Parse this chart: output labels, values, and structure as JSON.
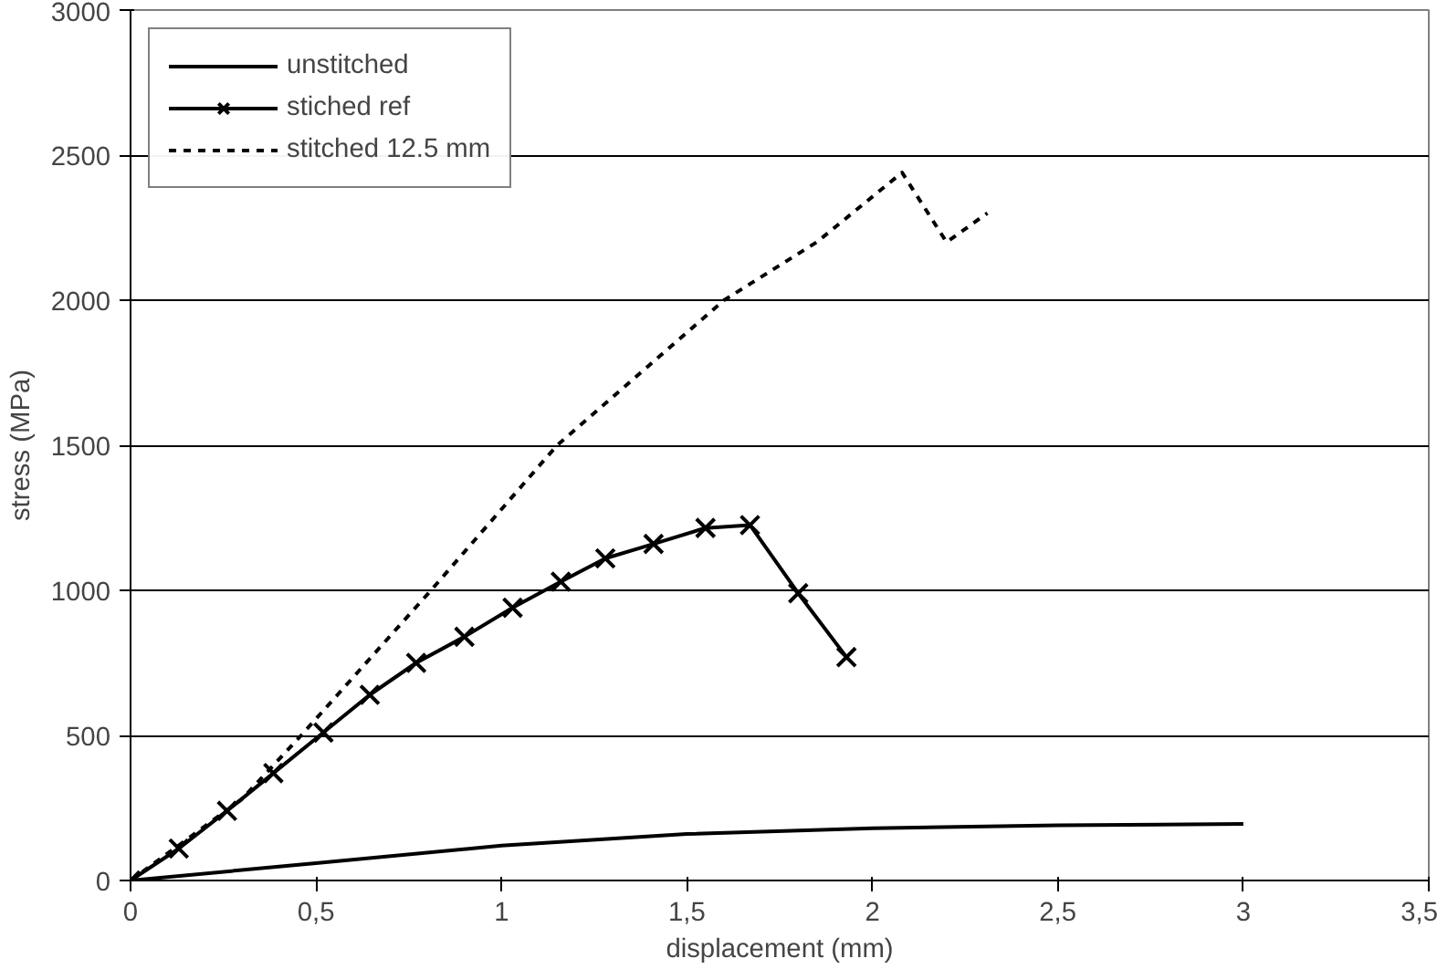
{
  "chart_data": {
    "type": "line",
    "xlabel": "displacement (mm)",
    "ylabel": "stress (MPa)",
    "xlim": [
      0,
      3.5
    ],
    "xticks": [
      {
        "value": 0,
        "label": "0"
      },
      {
        "value": 0.5,
        "label": "0,5"
      },
      {
        "value": 1,
        "label": "1"
      },
      {
        "value": 1.5,
        "label": "1,5"
      },
      {
        "value": 2,
        "label": "2"
      },
      {
        "value": 2.5,
        "label": "2,5"
      },
      {
        "value": 3,
        "label": "3"
      },
      {
        "value": 3.5,
        "label": "3,5"
      }
    ],
    "ylim": [
      0,
      3000
    ],
    "yticks": [
      0,
      500,
      1000,
      1500,
      2000,
      2500,
      3000
    ],
    "grid": "y",
    "legend": "top left",
    "series": [
      {
        "name": "unstitched",
        "color": "#000000",
        "marker": "none",
        "line_style": "solid",
        "x": [
          0,
          0.5,
          1,
          1.5,
          2,
          2.5,
          3
        ],
        "values": [
          0,
          60,
          120,
          160,
          180,
          190,
          195
        ]
      },
      {
        "name": "stiched ref",
        "color": "#000000",
        "marker": "cross",
        "line_style": "solid",
        "x": [
          0,
          0.13,
          0.26,
          0.385,
          0.52,
          0.645,
          0.77,
          0.9,
          1.03,
          1.16,
          1.28,
          1.41,
          1.55,
          1.67,
          1.8,
          1.93
        ],
        "values": [
          0,
          110,
          240,
          370,
          510,
          640,
          750,
          840,
          940,
          1030,
          1110,
          1160,
          1215,
          1225,
          990,
          770
        ]
      },
      {
        "name": "stitched 12.5 mm",
        "color": "#000000",
        "marker": "none",
        "line_style": "dashed",
        "x": [
          0,
          0.3,
          0.46,
          0.81,
          1.15,
          1.6,
          1.85,
          2.08,
          2.2,
          2.31
        ],
        "values": [
          0,
          280,
          500,
          1000,
          1500,
          2000,
          2200,
          2440,
          2200,
          2300
        ]
      }
    ]
  }
}
